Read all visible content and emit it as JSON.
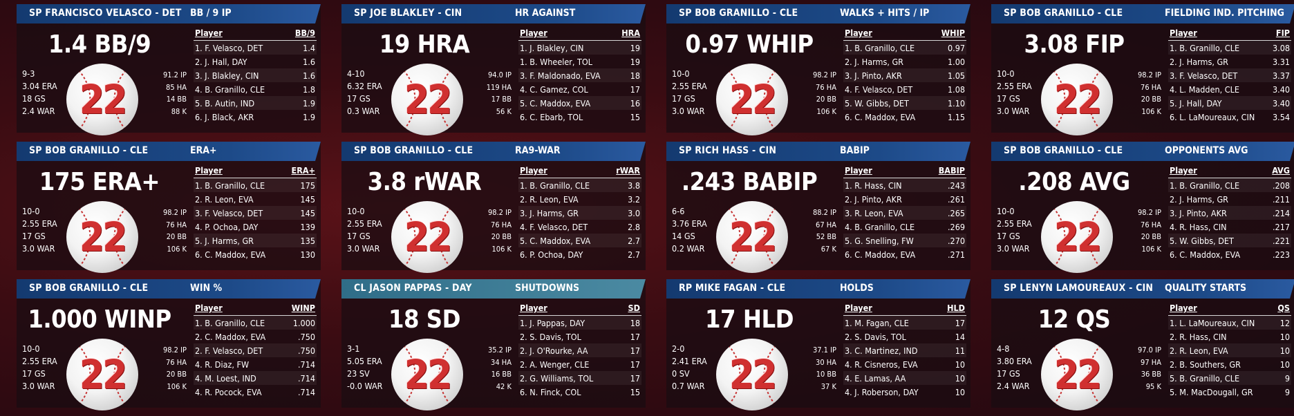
{
  "cards": [
    {
      "pitcher": "SP FRANCISCO VELASCO - DET",
      "stat": "BB / 9 IP",
      "big": "1.4 BB/9",
      "number": "22",
      "left": [
        "9-3",
        "3.04 ERA",
        "18 GS",
        "2.4 WAR"
      ],
      "right": [
        "91.2 IP",
        "85 HA",
        "14 BB",
        "88 K"
      ],
      "col": "BB/9",
      "rows": [
        [
          "1. F. Velasco, DET",
          "1.4"
        ],
        [
          "2. J. Hall, DAY",
          "1.6"
        ],
        [
          "3. J. Blakley, CIN",
          "1.6"
        ],
        [
          "4. B. Granillo, CLE",
          "1.8"
        ],
        [
          "5. B. Autin, IND",
          "1.9"
        ],
        [
          "6. J. Black, AKR",
          "1.9"
        ]
      ]
    },
    {
      "pitcher": "SP JOE BLAKLEY - CIN",
      "stat": "HR AGAINST",
      "big": "19 HRA",
      "number": "22",
      "left": [
        "4-10",
        "6.32 ERA",
        "17 GS",
        "0.3 WAR"
      ],
      "right": [
        "94.0 IP",
        "119 HA",
        "17 BB",
        "56 K"
      ],
      "col": "HRA",
      "rows": [
        [
          "1. J. Blakley, CIN",
          "19"
        ],
        [
          "1. B. Wheeler, TOL",
          "19"
        ],
        [
          "3. F. Maldonado, EVA",
          "18"
        ],
        [
          "4. C. Gamez, COL",
          "17"
        ],
        [
          "5. C. Maddox, EVA",
          "16"
        ],
        [
          "6. C. Ebarb, TOL",
          "15"
        ]
      ]
    },
    {
      "pitcher": "SP BOB GRANILLO - CLE",
      "stat": "WALKS + HITS / IP",
      "big": "0.97 WHIP",
      "number": "22",
      "left": [
        "10-0",
        "2.55 ERA",
        "17 GS",
        "3.0 WAR"
      ],
      "right": [
        "98.2 IP",
        "76 HA",
        "20 BB",
        "106 K"
      ],
      "col": "WHIP",
      "rows": [
        [
          "1. B. Granillo, CLE",
          "0.97"
        ],
        [
          "2. J. Harms, GR",
          "1.00"
        ],
        [
          "3. J. Pinto, AKR",
          "1.05"
        ],
        [
          "4. F. Velasco, DET",
          "1.08"
        ],
        [
          "5. W. Gibbs, DET",
          "1.10"
        ],
        [
          "6. C. Maddox, EVA",
          "1.15"
        ]
      ]
    },
    {
      "pitcher": "SP BOB GRANILLO - CLE",
      "stat": "FIELDING IND. PITCHING",
      "big": "3.08 FIP",
      "number": "22",
      "left": [
        "10-0",
        "2.55 ERA",
        "17 GS",
        "3.0 WAR"
      ],
      "right": [
        "98.2 IP",
        "76 HA",
        "20 BB",
        "106 K"
      ],
      "col": "FIP",
      "rows": [
        [
          "1. B. Granillo, CLE",
          "3.08"
        ],
        [
          "2. J. Harms, GR",
          "3.31"
        ],
        [
          "3. F. Velasco, DET",
          "3.37"
        ],
        [
          "4. L. Madden, CLE",
          "3.40"
        ],
        [
          "5. J. Hall, DAY",
          "3.40"
        ],
        [
          "6. L. LaMoureaux, CIN",
          "3.54"
        ]
      ]
    },
    {
      "pitcher": "SP BOB GRANILLO - CLE",
      "stat": "ERA+",
      "big": "175 ERA+",
      "number": "22",
      "left": [
        "10-0",
        "2.55 ERA",
        "17 GS",
        "3.0 WAR"
      ],
      "right": [
        "98.2 IP",
        "76 HA",
        "20 BB",
        "106 K"
      ],
      "col": "ERA+",
      "rows": [
        [
          "1. B. Granillo, CLE",
          "175"
        ],
        [
          "2. R. Leon, EVA",
          "145"
        ],
        [
          "3. F. Velasco, DET",
          "145"
        ],
        [
          "4. P. Ochoa, DAY",
          "139"
        ],
        [
          "5. J. Harms, GR",
          "135"
        ],
        [
          "6. C. Maddox, EVA",
          "130"
        ]
      ]
    },
    {
      "pitcher": "SP BOB GRANILLO - CLE",
      "stat": "RA9-WAR",
      "big": "3.8 rWAR",
      "number": "22",
      "left": [
        "10-0",
        "2.55 ERA",
        "17 GS",
        "3.0 WAR"
      ],
      "right": [
        "98.2 IP",
        "76 HA",
        "20 BB",
        "106 K"
      ],
      "col": "rWAR",
      "rows": [
        [
          "1. B. Granillo, CLE",
          "3.8"
        ],
        [
          "2. R. Leon, EVA",
          "3.2"
        ],
        [
          "3. J. Harms, GR",
          "3.0"
        ],
        [
          "4. F. Velasco, DET",
          "2.8"
        ],
        [
          "5. C. Maddox, EVA",
          "2.7"
        ],
        [
          "6. P. Ochoa, DAY",
          "2.7"
        ]
      ]
    },
    {
      "pitcher": "SP RICH HASS - CIN",
      "stat": "BABIP",
      "big": ".243 BABIP",
      "number": "22",
      "left": [
        "6-6",
        "3.76 ERA",
        "14 GS",
        "0.2 WAR"
      ],
      "right": [
        "88.2 IP",
        "67 HA",
        "52 BB",
        "67 K"
      ],
      "col": "BABIP",
      "rows": [
        [
          "1. R. Hass, CIN",
          ".243"
        ],
        [
          "2. J. Pinto, AKR",
          ".261"
        ],
        [
          "3. R. Leon, EVA",
          ".265"
        ],
        [
          "4. B. Granillo, CLE",
          ".269"
        ],
        [
          "5. G. Snelling, FW",
          ".270"
        ],
        [
          "6. C. Maddox, EVA",
          ".271"
        ]
      ]
    },
    {
      "pitcher": "SP BOB GRANILLO - CLE",
      "stat": "OPPONENTS AVG",
      "big": ".208 AVG",
      "number": "22",
      "left": [
        "10-0",
        "2.55 ERA",
        "17 GS",
        "3.0 WAR"
      ],
      "right": [
        "98.2 IP",
        "76 HA",
        "20 BB",
        "106 K"
      ],
      "col": "AVG",
      "rows": [
        [
          "1. B. Granillo, CLE",
          ".208"
        ],
        [
          "2. J. Harms, GR",
          ".211"
        ],
        [
          "3. J. Pinto, AKR",
          ".214"
        ],
        [
          "4. R. Hass, CIN",
          ".217"
        ],
        [
          "5. W. Gibbs, DET",
          ".221"
        ],
        [
          "6. C. Maddox, EVA",
          ".223"
        ]
      ]
    },
    {
      "pitcher": "SP BOB GRANILLO - CLE",
      "stat": "WIN %",
      "big": "1.000 WINP",
      "number": "22",
      "left": [
        "10-0",
        "2.55 ERA",
        "17 GS",
        "3.0 WAR"
      ],
      "right": [
        "98.2 IP",
        "76 HA",
        "20 BB",
        "106 K"
      ],
      "col": "WINP",
      "rows": [
        [
          "1. B. Granillo, CLE",
          "1.000"
        ],
        [
          "2. C. Maddox, EVA",
          ".750"
        ],
        [
          "2. F. Velasco, DET",
          ".750"
        ],
        [
          "4. R. Diaz, FW",
          ".714"
        ],
        [
          "4. M. Loest, IND",
          ".714"
        ],
        [
          "4. R. Pocock, EVA",
          ".714"
        ]
      ]
    },
    {
      "pitcher": "CL JASON PAPPAS - DAY",
      "stat": "SHUTDOWNS",
      "big": "18 SD",
      "number": "22",
      "alt": true,
      "left": [
        "3-1",
        "5.05 ERA",
        "23 SV",
        "-0.0 WAR"
      ],
      "right": [
        "35.2 IP",
        "34 HA",
        "16 BB",
        "42 K"
      ],
      "col": "SD",
      "rows": [
        [
          "1. J. Pappas, DAY",
          "18"
        ],
        [
          "2. S. Davis, TOL",
          "17"
        ],
        [
          "2. J. O'Rourke, AA",
          "17"
        ],
        [
          "2. A. Wenger, CLE",
          "17"
        ],
        [
          "2. G. Williams, TOL",
          "17"
        ],
        [
          "6. N. Finck, COL",
          "15"
        ]
      ]
    },
    {
      "pitcher": "RP MIKE FAGAN - CLE",
      "stat": "HOLDS",
      "big": "17 HLD",
      "number": "22",
      "left": [
        "2-0",
        "2.41 ERA",
        "0 SV",
        "0.7 WAR"
      ],
      "right": [
        "37.1 IP",
        "30 HA",
        "10 BB",
        "37 K"
      ],
      "col": "HLD",
      "rows": [
        [
          "1. M. Fagan, CLE",
          "17"
        ],
        [
          "2. S. Davis, TOL",
          "14"
        ],
        [
          "3. C. Martinez, IND",
          "11"
        ],
        [
          "4. R. Cisneros, EVA",
          "10"
        ],
        [
          "4. E. Lamas, AA",
          "10"
        ],
        [
          "4. J. Roberson, DAY",
          "10"
        ]
      ]
    },
    {
      "pitcher": "SP LENYN LAMOUREAUX - CIN",
      "stat": "QUALITY STARTS",
      "big": "12 QS",
      "number": "22",
      "left": [
        "4-8",
        "3.80 ERA",
        "17 GS",
        "2.4 WAR"
      ],
      "right": [
        "97.0 IP",
        "97 HA",
        "36 BB",
        "95 K"
      ],
      "col": "QS",
      "rows": [
        [
          "1. L. LaMoureaux, CIN",
          "12"
        ],
        [
          "2. R. Hass, CIN",
          "10"
        ],
        [
          "2. R. Leon, EVA",
          "10"
        ],
        [
          "2. B. Southers, GR",
          "10"
        ],
        [
          "5. B. Granillo, CLE",
          "9"
        ],
        [
          "5. M. MacDougall, GR",
          "9"
        ]
      ]
    }
  ]
}
